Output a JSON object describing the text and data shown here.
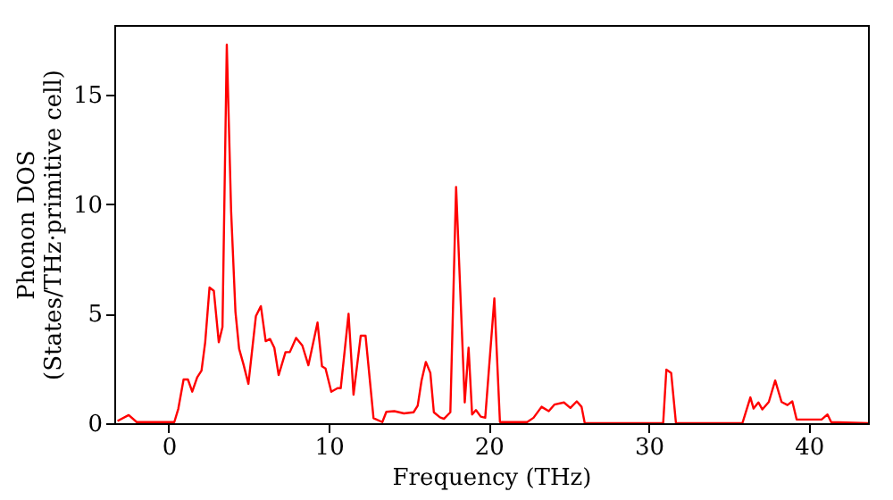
{
  "chart_data": {
    "type": "line",
    "xlabel": "Frequency (THz)",
    "ylabel": "Phonon DOS\n(States/THz·primitive cell)",
    "x": [
      -3.2,
      -2.5,
      -2.0,
      0.35,
      0.6,
      0.93,
      1.2,
      1.47,
      1.78,
      2.05,
      2.28,
      2.55,
      2.82,
      3.13,
      3.36,
      3.63,
      3.9,
      4.17,
      4.4,
      4.67,
      4.98,
      5.45,
      5.76,
      6.06,
      6.33,
      6.6,
      6.87,
      7.3,
      7.57,
      7.96,
      8.35,
      8.73,
      9.3,
      9.58,
      9.8,
      10.16,
      10.55,
      10.75,
      11.24,
      11.55,
      12.0,
      12.3,
      12.8,
      13.35,
      13.6,
      14.1,
      14.7,
      15.3,
      15.56,
      15.8,
      16.07,
      16.35,
      16.57,
      16.95,
      17.2,
      17.6,
      17.96,
      18.5,
      18.74,
      18.96,
      19.2,
      19.5,
      19.78,
      20.35,
      20.7,
      22.4,
      22.8,
      23.3,
      23.75,
      24.1,
      24.7,
      25.1,
      25.5,
      25.8,
      26.0,
      30.9,
      31.1,
      31.4,
      31.7,
      35.85,
      36.35,
      36.55,
      36.85,
      37.1,
      37.5,
      37.9,
      38.3,
      38.67,
      38.97,
      39.24,
      40.0,
      40.8,
      41.17,
      41.4,
      43.7
    ],
    "series": [
      {
        "color": "#ff0000",
        "values": [
          0.1,
          0.37,
          0.05,
          0.05,
          0.66,
          2.0,
          2.0,
          1.44,
          2.1,
          2.4,
          3.7,
          6.2,
          6.05,
          3.7,
          4.4,
          17.3,
          9.7,
          5.1,
          3.4,
          2.7,
          1.8,
          4.9,
          5.35,
          3.75,
          3.85,
          3.45,
          2.2,
          3.25,
          3.25,
          3.9,
          3.55,
          2.65,
          4.6,
          2.6,
          2.5,
          1.44,
          1.6,
          1.6,
          5.0,
          1.3,
          4.0,
          4.0,
          0.23,
          0.05,
          0.52,
          0.55,
          0.45,
          0.5,
          0.8,
          1.95,
          2.8,
          2.3,
          0.5,
          0.27,
          0.2,
          0.5,
          10.8,
          0.95,
          3.45,
          0.4,
          0.6,
          0.3,
          0.25,
          5.7,
          0.05,
          0.05,
          0.25,
          0.75,
          0.55,
          0.85,
          0.95,
          0.7,
          1.0,
          0.75,
          0.0,
          0.0,
          2.45,
          2.3,
          0.0,
          0.0,
          1.18,
          0.67,
          0.95,
          0.63,
          0.97,
          1.95,
          0.97,
          0.83,
          1.0,
          0.17,
          0.17,
          0.17,
          0.4,
          0.05,
          0.0
        ]
      }
    ],
    "xlim": [
      -3.4,
      43.7
    ],
    "xticks": [
      0,
      10,
      20,
      30,
      40
    ],
    "ylim": [
      0,
      18.2
    ],
    "yticks": [
      0,
      5,
      10,
      15
    ],
    "grid": false,
    "marker": "none",
    "line_style": "solid"
  }
}
